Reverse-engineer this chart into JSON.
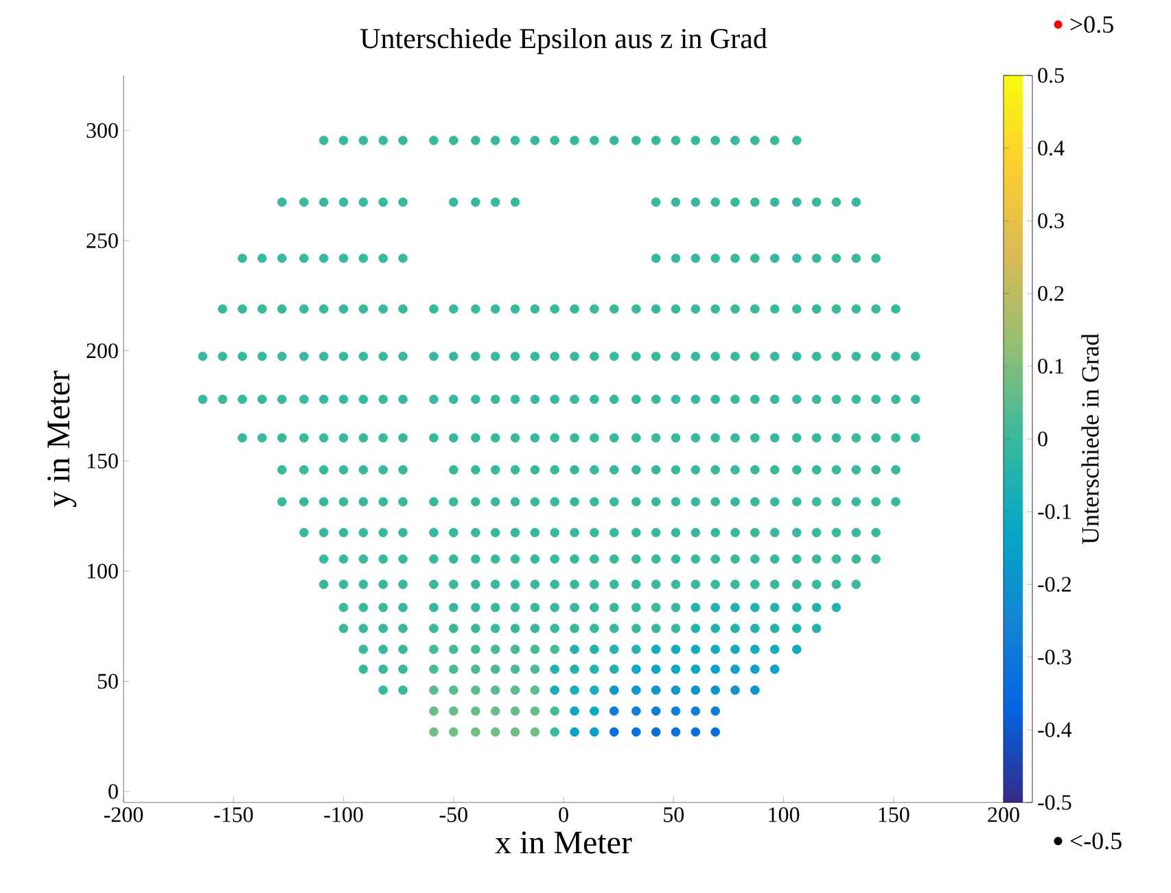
{
  "chart_data": {
    "type": "scatter",
    "title": "Unterschiede Epsilon aus z in Grad",
    "xlabel": "x in Meter",
    "ylabel": "y in Meter",
    "clabel": "Unterschiede in Grad",
    "xlim": [
      -200,
      200
    ],
    "xticks": [
      -200,
      -150,
      -100,
      -50,
      0,
      50,
      100,
      150,
      200
    ],
    "ylim": [
      -5,
      325
    ],
    "yticks": [
      0,
      50,
      100,
      150,
      200,
      250,
      300
    ],
    "clim": [
      -0.5,
      0.5
    ],
    "cticks": [
      -0.5,
      -0.4,
      -0.3,
      -0.2,
      -0.1,
      0,
      0.1,
      0.2,
      0.3,
      0.4,
      0.5
    ],
    "marker": "circle",
    "legend": "right",
    "series": [
      {
        "name": ">0.5",
        "color": "#ff0000"
      },
      {
        "name": "<-0.5",
        "color": "#000000"
      },
      {
        "x": [
          -109,
          -100,
          -91,
          -82,
          -73,
          -59,
          -50,
          -40,
          -31,
          -22,
          -13,
          -4,
          5,
          14,
          23,
          33,
          42,
          51,
          60,
          69,
          78,
          87,
          96,
          106
        ],
        "values": [
          295.5,
          295.5,
          295.5,
          295.5,
          295.5,
          295.5,
          295.5,
          295.5,
          295.5,
          295.5,
          295.5,
          295.5,
          295.5,
          295.5,
          295.5,
          295.5,
          295.5,
          295.5,
          295.5,
          295.5,
          295.5,
          295.5,
          295.5,
          295.5
        ],
        "cvalues": [
          0,
          0,
          0,
          0,
          0,
          0,
          0,
          0,
          0,
          0,
          0,
          0,
          0,
          0,
          0,
          0,
          0,
          0,
          0,
          0,
          0,
          0,
          0,
          0
        ]
      },
      {
        "x": [
          -128,
          -118,
          -109,
          -100,
          -91,
          -82,
          -73,
          -50,
          -40,
          -31,
          -22,
          42,
          51,
          60,
          69,
          78,
          87,
          96,
          106,
          115,
          124,
          133
        ],
        "values": [
          267.5,
          267.5,
          267.5,
          267.5,
          267.5,
          267.5,
          267.5,
          267.5,
          267.5,
          267.5,
          267.5,
          267.5,
          267.5,
          267.5,
          267.5,
          267.5,
          267.5,
          267.5,
          267.5,
          267.5,
          267.5,
          267.5
        ],
        "cvalues": [
          0,
          0,
          0,
          0,
          0,
          0,
          0,
          0,
          0,
          0,
          0,
          0,
          0,
          0,
          0,
          0,
          0,
          0,
          0,
          0,
          0,
          0
        ]
      },
      {
        "x": [
          -146,
          -137,
          -128,
          -118,
          -109,
          -100,
          -91,
          -82,
          -73,
          42,
          51,
          60,
          69,
          78,
          87,
          96,
          106,
          115,
          124,
          133,
          142
        ],
        "values": [
          242,
          242,
          242,
          242,
          242,
          242,
          242,
          242,
          242,
          242,
          242,
          242,
          242,
          242,
          242,
          242,
          242,
          242,
          242,
          242,
          242
        ],
        "cvalues": [
          0,
          0,
          0,
          0,
          0,
          0,
          0,
          0,
          0,
          0,
          0,
          0,
          0,
          0,
          0,
          0,
          0,
          0,
          0,
          0,
          0
        ]
      },
      {
        "x": [
          -155,
          -146,
          -137,
          -128,
          -118,
          -109,
          -100,
          -91,
          -82,
          -73,
          -59,
          -50,
          -40,
          -31,
          -22,
          -13,
          -4,
          5,
          14,
          23,
          33,
          42,
          51,
          60,
          69,
          78,
          87,
          96,
          106,
          115,
          124,
          133,
          142,
          151
        ],
        "values": [
          219,
          219,
          219,
          219,
          219,
          219,
          219,
          219,
          219,
          219,
          219,
          219,
          219,
          219,
          219,
          219,
          219,
          219,
          219,
          219,
          219,
          219,
          219,
          219,
          219,
          219,
          219,
          219,
          219,
          219,
          219,
          219,
          219,
          219
        ],
        "cvalues": [
          0,
          0,
          0,
          0,
          0,
          0,
          0,
          0,
          0,
          0,
          0,
          0,
          0,
          0,
          0,
          0,
          0,
          0,
          0,
          0,
          0,
          0,
          0,
          0,
          0,
          0,
          0,
          0,
          0,
          0,
          0,
          0,
          0,
          0
        ]
      },
      {
        "x": [
          -164,
          -155,
          -146,
          -137,
          -128,
          -118,
          -109,
          -100,
          -91,
          -82,
          -73,
          -59,
          -50,
          -40,
          -31,
          -22,
          -13,
          -4,
          5,
          14,
          23,
          33,
          42,
          51,
          60,
          69,
          78,
          87,
          96,
          106,
          115,
          124,
          133,
          142,
          151,
          160
        ],
        "values": [
          197.5,
          197.5,
          197.5,
          197.5,
          197.5,
          197.5,
          197.5,
          197.5,
          197.5,
          197.5,
          197.5,
          197.5,
          197.5,
          197.5,
          197.5,
          197.5,
          197.5,
          197.5,
          197.5,
          197.5,
          197.5,
          197.5,
          197.5,
          197.5,
          197.5,
          197.5,
          197.5,
          197.5,
          197.5,
          197.5,
          197.5,
          197.5,
          197.5,
          197.5,
          197.5,
          197.5
        ],
        "cvalues": [
          0,
          0,
          0,
          0,
          0,
          0,
          0,
          0,
          0,
          0,
          0,
          0,
          0,
          0,
          0,
          0,
          0,
          0,
          0,
          0,
          0,
          0,
          0,
          0,
          0,
          0,
          0,
          0,
          0,
          0,
          0,
          0,
          0,
          0,
          0,
          0
        ]
      },
      {
        "x": [
          -164,
          -155,
          -146,
          -137,
          -128,
          -118,
          -109,
          -100,
          -91,
          -82,
          -73,
          -59,
          -50,
          -40,
          -31,
          -22,
          -13,
          -4,
          5,
          14,
          23,
          33,
          42,
          51,
          60,
          69,
          78,
          87,
          96,
          106,
          115,
          124,
          133,
          142,
          151,
          160
        ],
        "values": [
          178,
          178,
          178,
          178,
          178,
          178,
          178,
          178,
          178,
          178,
          178,
          178,
          178,
          178,
          178,
          178,
          178,
          178,
          178,
          178,
          178,
          178,
          178,
          178,
          178,
          178,
          178,
          178,
          178,
          178,
          178,
          178,
          178,
          178,
          178,
          178
        ],
        "cvalues": [
          0,
          0,
          0,
          0,
          0,
          0,
          0,
          0,
          0,
          0,
          0,
          0,
          0,
          0,
          0,
          0,
          0,
          0,
          0,
          0,
          0,
          0,
          0,
          0,
          0,
          0,
          0,
          0,
          0,
          0,
          0,
          0,
          0,
          0,
          0,
          0
        ]
      },
      {
        "x": [
          -146,
          -137,
          -128,
          -118,
          -109,
          -100,
          -91,
          -82,
          -73,
          -59,
          -50,
          -40,
          -31,
          -22,
          -13,
          -4,
          5,
          14,
          23,
          33,
          42,
          51,
          60,
          69,
          78,
          87,
          96,
          106,
          115,
          124,
          133,
          142,
          151,
          160
        ],
        "values": [
          160.5,
          160.5,
          160.5,
          160.5,
          160.5,
          160.5,
          160.5,
          160.5,
          160.5,
          160.5,
          160.5,
          160.5,
          160.5,
          160.5,
          160.5,
          160.5,
          160.5,
          160.5,
          160.5,
          160.5,
          160.5,
          160.5,
          160.5,
          160.5,
          160.5,
          160.5,
          160.5,
          160.5,
          160.5,
          160.5,
          160.5,
          160.5,
          160.5,
          160.5
        ],
        "cvalues": [
          0,
          0,
          0,
          0,
          0,
          0,
          0,
          0,
          0,
          0,
          0,
          0,
          0,
          0,
          0,
          0,
          0,
          0,
          0,
          0,
          0,
          0,
          0,
          0,
          0,
          0,
          0,
          0,
          0,
          0,
          0,
          0,
          0,
          0
        ]
      },
      {
        "x": [
          -128,
          -118,
          -109,
          -100,
          -91,
          -82,
          -73,
          -50,
          -40,
          -31,
          -22,
          -13,
          -4,
          5,
          14,
          23,
          33,
          42,
          51,
          60,
          69,
          78,
          87,
          96,
          106,
          115,
          124,
          133,
          142,
          151
        ],
        "values": [
          146,
          146,
          146,
          146,
          146,
          146,
          146,
          146,
          146,
          146,
          146,
          146,
          146,
          146,
          146,
          146,
          146,
          146,
          146,
          146,
          146,
          146,
          146,
          146,
          146,
          146,
          146,
          146,
          146,
          146
        ],
        "cvalues": [
          0,
          0,
          0,
          0,
          0,
          0,
          0,
          0,
          0,
          0,
          0,
          0,
          0,
          0,
          0,
          0,
          0,
          0,
          0,
          0,
          0,
          0,
          0,
          0,
          0,
          0,
          0,
          0,
          0,
          0
        ]
      },
      {
        "x": [
          -128,
          -118,
          -109,
          -100,
          -91,
          -82,
          -73,
          -59,
          -50,
          -40,
          -31,
          -22,
          -13,
          -4,
          5,
          14,
          23,
          33,
          42,
          51,
          60,
          69,
          78,
          87,
          96,
          106,
          115,
          124,
          133,
          142,
          151
        ],
        "values": [
          131.5,
          131.5,
          131.5,
          131.5,
          131.5,
          131.5,
          131.5,
          131.5,
          131.5,
          131.5,
          131.5,
          131.5,
          131.5,
          131.5,
          131.5,
          131.5,
          131.5,
          131.5,
          131.5,
          131.5,
          131.5,
          131.5,
          131.5,
          131.5,
          131.5,
          131.5,
          131.5,
          131.5,
          131.5,
          131.5,
          131.5
        ],
        "cvalues": [
          0,
          0,
          0,
          0,
          0,
          0,
          0,
          0,
          0,
          0,
          0,
          0,
          0,
          0,
          0,
          0,
          0,
          0,
          0,
          0,
          0,
          0,
          0,
          0,
          0,
          0,
          0,
          0,
          0,
          0,
          0
        ]
      },
      {
        "x": [
          -118,
          -109,
          -100,
          -91,
          -82,
          -73,
          -59,
          -50,
          -40,
          -31,
          -22,
          -13,
          -4,
          5,
          14,
          23,
          33,
          42,
          51,
          60,
          69,
          78,
          87,
          96,
          106,
          115,
          124,
          133,
          142
        ],
        "values": [
          117.5,
          117.5,
          117.5,
          117.5,
          117.5,
          117.5,
          117.5,
          117.5,
          117.5,
          117.5,
          117.5,
          117.5,
          117.5,
          117.5,
          117.5,
          117.5,
          117.5,
          117.5,
          117.5,
          117.5,
          117.5,
          117.5,
          117.5,
          117.5,
          117.5,
          117.5,
          117.5,
          117.5,
          117.5
        ],
        "cvalues": [
          0,
          0,
          0,
          0,
          0,
          0,
          0,
          0,
          0,
          0,
          0,
          0,
          0,
          0,
          0,
          0,
          0,
          0,
          0,
          0,
          0,
          0,
          0,
          0,
          0,
          0,
          0,
          0,
          0
        ]
      },
      {
        "x": [
          -109,
          -100,
          -91,
          -82,
          -73,
          -59,
          -50,
          -40,
          -31,
          -22,
          -13,
          -4,
          5,
          14,
          23,
          33,
          42,
          51,
          60,
          69,
          78,
          87,
          96,
          106,
          115,
          124,
          133,
          142
        ],
        "values": [
          105.5,
          105.5,
          105.5,
          105.5,
          105.5,
          105.5,
          105.5,
          105.5,
          105.5,
          105.5,
          105.5,
          105.5,
          105.5,
          105.5,
          105.5,
          105.5,
          105.5,
          105.5,
          105.5,
          105.5,
          105.5,
          105.5,
          105.5,
          105.5,
          105.5,
          105.5,
          105.5,
          105.5
        ],
        "cvalues": [
          0,
          0,
          0,
          0,
          0,
          0,
          0,
          0,
          0,
          0,
          0,
          0,
          0,
          0,
          0,
          0,
          0,
          0,
          0,
          0,
          0,
          0,
          0,
          0,
          0,
          0,
          0,
          0
        ]
      },
      {
        "x": [
          -109,
          -100,
          -91,
          -82,
          -73,
          -59,
          -50,
          -40,
          -31,
          -22,
          -13,
          -4,
          5,
          14,
          23,
          33,
          42,
          51,
          60,
          69,
          78,
          87,
          96,
          106,
          115,
          124,
          133
        ],
        "values": [
          94,
          94,
          94,
          94,
          94,
          94,
          94,
          94,
          94,
          94,
          94,
          94,
          94,
          94,
          94,
          94,
          94,
          94,
          94,
          94,
          94,
          94,
          94,
          94,
          94,
          94,
          94
        ],
        "cvalues": [
          0,
          0,
          0,
          0,
          0,
          0,
          0,
          0,
          0,
          0,
          0,
          0,
          0,
          0,
          0,
          0,
          0,
          0,
          0,
          0,
          0,
          0,
          0,
          0,
          0,
          0,
          0
        ]
      },
      {
        "x": [
          -100,
          -91,
          -82,
          -73,
          -59,
          -50,
          -40,
          -31,
          -22,
          -13,
          -4,
          5,
          14,
          23,
          33,
          42,
          51
        ],
        "values": [
          83.5,
          83.5,
          83.5,
          83.5,
          83.5,
          83.5,
          83.5,
          83.5,
          83.5,
          83.5,
          83.5,
          83.5,
          83.5,
          83.5,
          83.5,
          83.5,
          83.5
        ],
        "cvalues": [
          0,
          0,
          0,
          0,
          0,
          0,
          0,
          0,
          0,
          0,
          0,
          0,
          0,
          0,
          0,
          0,
          0
        ]
      },
      {
        "x": [
          60,
          69,
          78,
          87,
          96,
          106,
          115,
          124
        ],
        "values": [
          83.5,
          83.5,
          83.5,
          83.5,
          83.5,
          83.5,
          83.5,
          83.5
        ],
        "cvalues": [
          -0.05,
          -0.05,
          -0.05,
          -0.05,
          -0.05,
          -0.05,
          -0.05,
          -0.05
        ]
      },
      {
        "x": [
          -100,
          -91,
          -82,
          -73,
          -59,
          -50,
          -40,
          -31,
          -22,
          -13,
          -4,
          5,
          14,
          23,
          33,
          42,
          51
        ],
        "values": [
          74,
          74,
          74,
          74,
          74,
          74,
          74,
          74,
          74,
          74,
          74,
          74,
          74,
          74,
          74,
          74,
          74
        ],
        "cvalues": [
          0,
          0,
          0,
          0,
          0,
          0,
          0,
          0,
          0,
          0,
          0,
          0,
          0,
          0,
          0,
          0,
          0
        ]
      },
      {
        "x": [
          60,
          69,
          78,
          87,
          96,
          106,
          115
        ],
        "values": [
          74,
          74,
          74,
          74,
          74,
          74,
          74
        ],
        "cvalues": [
          -0.05,
          -0.05,
          -0.05,
          -0.05,
          -0.05,
          -0.05,
          -0.05
        ]
      },
      {
        "x": [
          -91,
          -82,
          -73
        ],
        "values": [
          64.5,
          64.5,
          64.5
        ],
        "cvalues": [
          0,
          0,
          0
        ]
      },
      {
        "x": [
          -59,
          -50,
          -40,
          -31,
          -22,
          -13,
          -4
        ],
        "values": [
          64.5,
          64.5,
          64.5,
          64.5,
          64.5,
          64.5,
          64.5
        ],
        "cvalues": [
          0.02,
          0.02,
          0.02,
          0.02,
          0.02,
          0.02,
          0.02
        ]
      },
      {
        "x": [
          5,
          14,
          23,
          33
        ],
        "values": [
          64.5,
          64.5,
          64.5,
          64.5
        ],
        "cvalues": [
          -0.05,
          -0.05,
          -0.05,
          -0.05
        ]
      },
      {
        "x": [
          42,
          51,
          60,
          69,
          78,
          87,
          96,
          106
        ],
        "values": [
          64.5,
          64.5,
          64.5,
          64.5,
          64.5,
          64.5,
          64.5,
          64.5
        ],
        "cvalues": [
          -0.1,
          -0.1,
          -0.1,
          -0.1,
          -0.1,
          -0.1,
          -0.1,
          -0.1
        ]
      },
      {
        "x": [
          -91,
          -82,
          -73
        ],
        "values": [
          55.5,
          55.5,
          55.5
        ],
        "cvalues": [
          0,
          0,
          0
        ]
      },
      {
        "x": [
          -59,
          -50,
          -40,
          -31,
          -22,
          -13
        ],
        "values": [
          55.5,
          55.5,
          55.5,
          55.5,
          55.5,
          55.5
        ],
        "cvalues": [
          0.03,
          0.03,
          0.03,
          0.03,
          0.03,
          0.03
        ]
      },
      {
        "x": [
          -4,
          5,
          14,
          23
        ],
        "values": [
          55.5,
          55.5,
          55.5,
          55.5
        ],
        "cvalues": [
          -0.05,
          -0.05,
          -0.05,
          -0.05
        ]
      },
      {
        "x": [
          33,
          42,
          51,
          60
        ],
        "values": [
          55.5,
          55.5,
          55.5,
          55.5
        ],
        "cvalues": [
          -0.12,
          -0.12,
          -0.12,
          -0.12
        ]
      },
      {
        "x": [
          69,
          78,
          87,
          96
        ],
        "values": [
          55.5,
          55.5,
          55.5,
          55.5
        ],
        "cvalues": [
          -0.15,
          -0.15,
          -0.15,
          -0.15
        ]
      },
      {
        "x": [
          -82,
          -73
        ],
        "values": [
          46,
          46
        ],
        "cvalues": [
          0,
          0
        ]
      },
      {
        "x": [
          -59,
          -50,
          -40,
          -31,
          -22,
          -13
        ],
        "values": [
          46,
          46,
          46,
          46,
          46,
          46
        ],
        "cvalues": [
          0.05,
          0.05,
          0.05,
          0.05,
          0.05,
          0.05
        ]
      },
      {
        "x": [
          -4,
          5,
          14
        ],
        "values": [
          46,
          46,
          46
        ],
        "cvalues": [
          -0.08,
          -0.08,
          -0.08
        ]
      },
      {
        "x": [
          23,
          33,
          42,
          51
        ],
        "values": [
          46,
          46,
          46,
          46
        ],
        "cvalues": [
          -0.18,
          -0.18,
          -0.18,
          -0.18
        ]
      },
      {
        "x": [
          60,
          69,
          78,
          87
        ],
        "values": [
          46,
          46,
          46,
          46
        ],
        "cvalues": [
          -0.2,
          -0.2,
          -0.2,
          -0.2
        ]
      },
      {
        "x": [
          -59,
          -50,
          -40,
          -31,
          -22,
          -13
        ],
        "values": [
          36.5,
          36.5,
          36.5,
          36.5,
          36.5,
          36.5
        ],
        "cvalues": [
          0.07,
          0.07,
          0.07,
          0.07,
          0.07,
          0.07
        ]
      },
      {
        "x": [
          -4
        ],
        "values": [
          36.5
        ],
        "cvalues": [
          0.02
        ]
      },
      {
        "x": [
          5,
          14
        ],
        "values": [
          36.5,
          36.5
        ],
        "cvalues": [
          -0.12,
          -0.12
        ]
      },
      {
        "x": [
          23,
          33,
          42,
          51,
          60,
          69
        ],
        "values": [
          36.5,
          36.5,
          36.5,
          36.5,
          36.5,
          36.5
        ],
        "cvalues": [
          -0.28,
          -0.28,
          -0.28,
          -0.28,
          -0.28,
          -0.28
        ]
      },
      {
        "x": [
          -59,
          -50,
          -40,
          -31,
          -22,
          -13
        ],
        "values": [
          27,
          27,
          27,
          27,
          27,
          27
        ],
        "cvalues": [
          0.08,
          0.08,
          0.08,
          0.08,
          0.08,
          0.08
        ]
      },
      {
        "x": [
          -4
        ],
        "values": [
          27
        ],
        "cvalues": [
          0
        ]
      },
      {
        "x": [
          5,
          14
        ],
        "values": [
          27,
          27
        ],
        "cvalues": [
          -0.15,
          -0.15
        ]
      },
      {
        "x": [
          23,
          33,
          42,
          51,
          60,
          69
        ],
        "values": [
          27,
          27,
          27,
          27,
          27,
          27
        ],
        "cvalues": [
          -0.33,
          -0.33,
          -0.33,
          -0.33,
          -0.33,
          -0.33
        ]
      }
    ]
  }
}
